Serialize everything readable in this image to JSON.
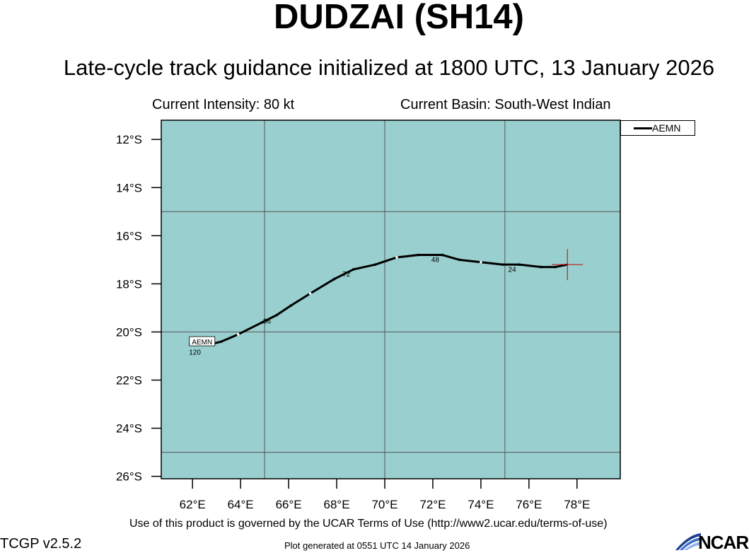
{
  "header": {
    "title": "DUDZAI (SH14)",
    "subtitle": "Late-cycle track guidance initialized at 1800 UTC, 13 January 2026",
    "intensity": "Current Intensity: 80 kt",
    "basin": "Current Basin: South-West Indian"
  },
  "legend": {
    "entries": [
      "AEMN"
    ]
  },
  "map": {
    "ocean_color": "#99cfcf",
    "grid_color": "#555555",
    "lon_range": [
      60.7,
      79.8
    ],
    "lat_range": [
      -26.1,
      -11.2
    ],
    "lat_ticks": [
      -12,
      -14,
      -16,
      -18,
      -20,
      -22,
      -24,
      -26
    ],
    "lat_tick_labels": [
      "12°S",
      "14°S",
      "16°S",
      "18°S",
      "20°S",
      "22°S",
      "24°S",
      "26°S"
    ],
    "lon_ticks": [
      62,
      64,
      66,
      68,
      70,
      72,
      74,
      76,
      78
    ],
    "lon_tick_labels": [
      "62°E",
      "64°E",
      "66°E",
      "68°E",
      "70°E",
      "72°E",
      "74°E",
      "76°E",
      "78°E"
    ],
    "grid_lons": [
      65,
      70,
      75
    ],
    "grid_lats": [
      -15,
      -20,
      -25
    ],
    "storm_position": {
      "lon": 77.6,
      "lat": -17.2,
      "color": "#cc0000"
    },
    "track": {
      "model": "AEMN",
      "color": "#000000",
      "points": [
        [
          77.6,
          -17.2
        ],
        [
          77.1,
          -17.3
        ],
        [
          76.5,
          -17.3
        ],
        [
          75.6,
          -17.2
        ],
        [
          74.9,
          -17.2
        ],
        [
          74.0,
          -17.1
        ],
        [
          73.1,
          -17.0
        ],
        [
          72.4,
          -16.8
        ],
        [
          71.4,
          -16.8
        ],
        [
          70.5,
          -16.9
        ],
        [
          69.6,
          -17.2
        ],
        [
          68.7,
          -17.4
        ],
        [
          67.9,
          -17.8
        ],
        [
          66.9,
          -18.4
        ],
        [
          66.1,
          -18.9
        ],
        [
          65.5,
          -19.3
        ],
        [
          64.9,
          -19.6
        ],
        [
          63.9,
          -20.1
        ],
        [
          63.2,
          -20.4
        ],
        [
          62.8,
          -20.5
        ],
        [
          61.9,
          -20.5
        ]
      ],
      "tau_labels": [
        {
          "text": "24",
          "lon": 75.3,
          "lat": -17.35
        },
        {
          "text": "48",
          "lon": 72.1,
          "lat": -16.95
        },
        {
          "text": "72",
          "lon": 68.4,
          "lat": -17.55
        },
        {
          "text": "96",
          "lon": 65.1,
          "lat": -19.5
        },
        {
          "text": "120",
          "lon": 62.1,
          "lat": -20.8
        },
        {
          "text": "\u0001",
          "lon": 63.4,
          "lat": -19.7
        }
      ],
      "end_label": {
        "text": "AEMN",
        "lon": 62.4,
        "lat": -20.4
      }
    }
  },
  "footer": {
    "terms": "Use of this product is governed by the UCAR Terms of Use (http://www2.ucar.edu/terms-of-use)",
    "version": "TCGP v2.5.2",
    "generated": "Plot generated at 0551 UTC   14 January 2026",
    "logo": "NCAR"
  }
}
